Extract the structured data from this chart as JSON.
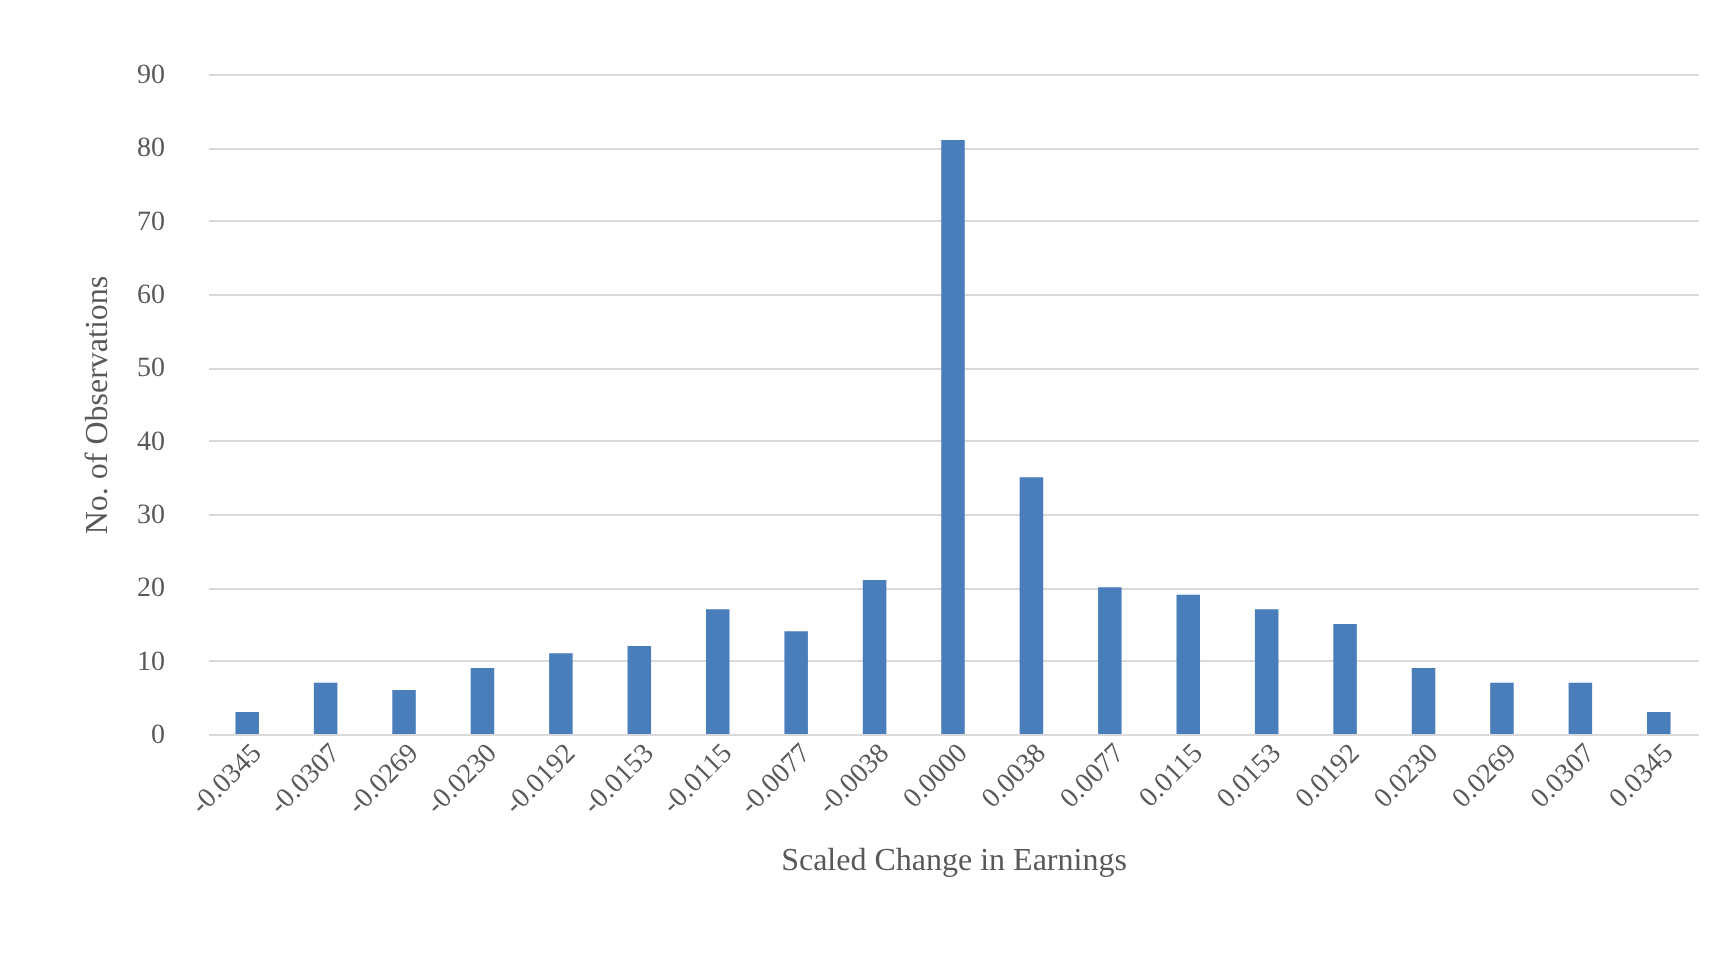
{
  "chart_data": {
    "type": "bar",
    "xlabel": "Scaled Change in Earnings",
    "ylabel": "No. of Observations",
    "categories": [
      "-0.0345",
      "-0.0307",
      "-0.0269",
      "-0.0230",
      "-0.0192",
      "-0.0153",
      "-0.0115",
      "-0.0077",
      "-0.0038",
      "0.0000",
      "0.0038",
      "0.0077",
      "0.0115",
      "0.0153",
      "0.0192",
      "0.0230",
      "0.0269",
      "0.0307",
      "0.0345"
    ],
    "values": [
      3,
      7,
      6,
      9,
      11,
      12,
      17,
      14,
      21,
      81,
      35,
      20,
      19,
      17,
      15,
      9,
      7,
      7,
      3
    ],
    "color": "#4a7ebb",
    "ylim": [
      0,
      90
    ],
    "yticks": [
      0,
      10,
      20,
      30,
      40,
      50,
      60,
      70,
      80,
      90
    ],
    "grid": "y"
  }
}
